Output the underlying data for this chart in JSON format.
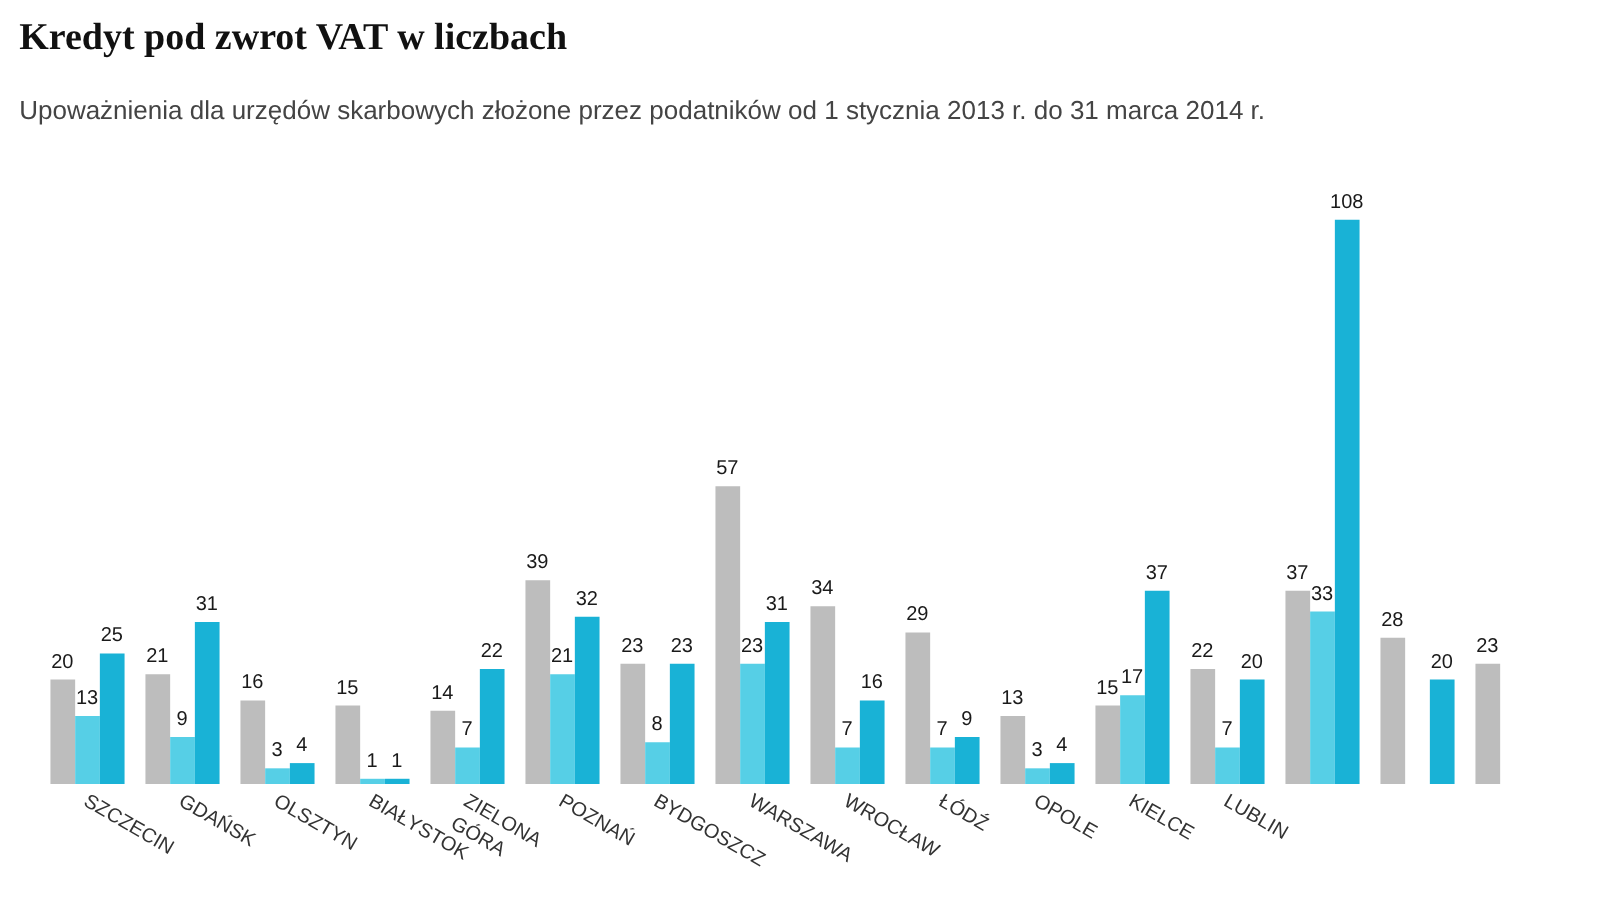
{
  "chart_data": {
    "type": "bar",
    "title": "Kredyt pod zwrot VAT w liczbach",
    "subtitle": "Upoważnienia dla urzędów skarbowych złożone przez podatników od 1 stycznia 2013 r. do 31 marca 2014 r.",
    "categories": [
      "SZCZECIN",
      "GDAŃSK",
      "OLSZTYN",
      "BIAŁYSTOK",
      "ZIELONA GÓRA",
      "POZNAŃ",
      "BYDGOSZCZ",
      "WARSZAWA",
      "WROCŁAW",
      "ŁÓDŹ",
      "OPOLE",
      "KIELCE",
      "LUBLIN",
      null,
      null,
      null
    ],
    "series": [
      {
        "color": "#bdbdbd",
        "values": [
          20,
          21,
          16,
          15,
          14,
          39,
          23,
          57,
          34,
          29,
          13,
          15,
          22,
          37,
          28,
          23
        ]
      },
      {
        "color": "#56cfe6",
        "values": [
          13,
          9,
          3,
          1,
          7,
          21,
          8,
          23,
          7,
          7,
          3,
          17,
          7,
          33,
          null,
          null
        ]
      },
      {
        "color": "#19b2d6",
        "values": [
          25,
          31,
          4,
          1,
          22,
          32,
          23,
          31,
          16,
          9,
          4,
          37,
          20,
          108,
          20,
          null
        ]
      }
    ],
    "data_labels": true
  }
}
